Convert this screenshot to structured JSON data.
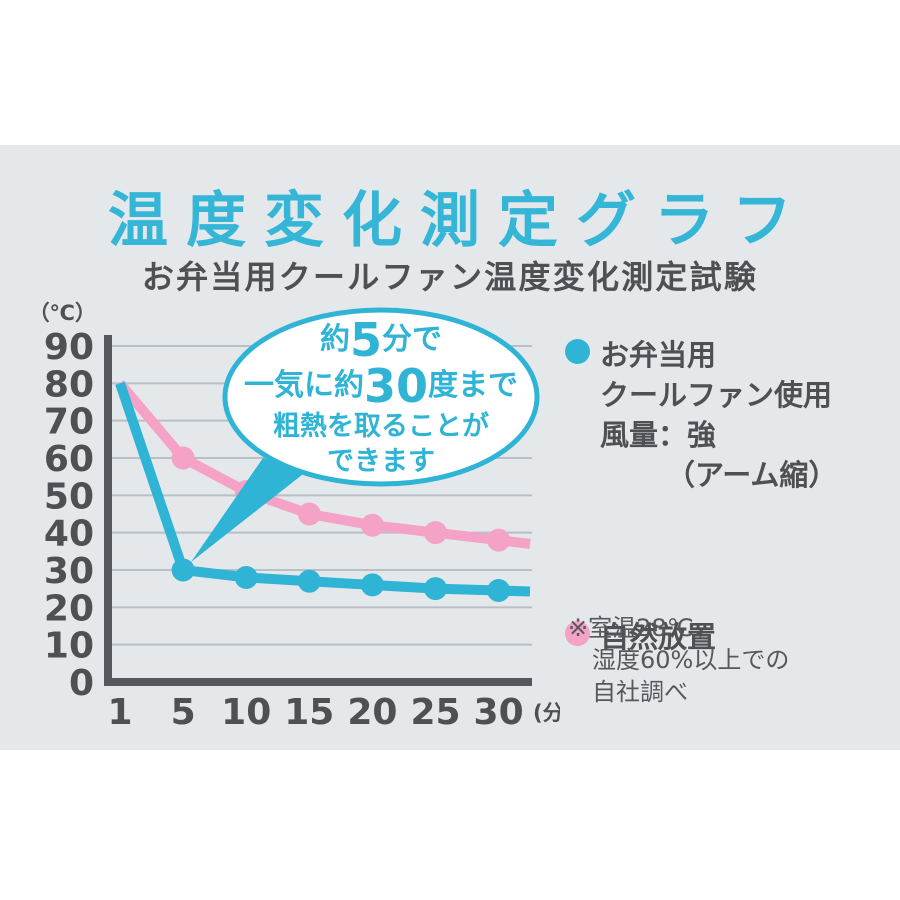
{
  "header": {
    "title": "温度変化測定グラフ",
    "subtitle": "お弁当用クールファン温度変化測定試験"
  },
  "colors": {
    "accent_cyan": "#2fb4d6",
    "title_cyan": "#35b6d6",
    "pink": "#f4a2c5",
    "text_dark": "#4d5154",
    "axis_gray": "#55585c",
    "gridline_gray": "#b9bfc5",
    "panel_bg": "#e4e8eb",
    "bubble_fill": "#ffffff"
  },
  "chart_data": {
    "type": "line",
    "title": "温度変化測定グラフ",
    "subtitle": "お弁当用クールファン温度変化測定試験",
    "categories": [
      1,
      5,
      10,
      15,
      20,
      25,
      30
    ],
    "x_unit": "(分)",
    "y_unit": "（℃）",
    "yticks": [
      90,
      80,
      70,
      60,
      50,
      40,
      30,
      20,
      10,
      0
    ],
    "ylim": [
      0,
      93
    ],
    "grid": true,
    "legend_position": "right",
    "series": [
      {
        "name": "自然放置",
        "color": "#f4a2c5",
        "values": [
          80,
          60,
          51,
          45,
          42,
          40,
          38
        ]
      },
      {
        "name": "お弁当用クールファン使用 風量：強（アーム縮）",
        "color": "#2fb4d6",
        "values": [
          80,
          30,
          28,
          27,
          26,
          25,
          24.5
        ]
      }
    ],
    "annotation": "約5分で一気に約30度まで粗熱を取ることができます"
  },
  "bubble": {
    "l1_pre": "約",
    "l1_big": "5",
    "l1_post": "分で",
    "l2_pre": "一気に約",
    "l2_big": "30",
    "l2_post": "度まで",
    "l3": "粗熱を取ることが",
    "l4": "できます"
  },
  "legend": {
    "cool_fan": {
      "lines": [
        "お弁当用",
        "クールファン使用",
        "風量：強",
        "（アーム縮）"
      ]
    },
    "natural": {
      "label": "自然放置"
    }
  },
  "note": {
    "lines": [
      "※室温28℃、",
      "湿度60%以上での",
      "自社調べ"
    ]
  }
}
